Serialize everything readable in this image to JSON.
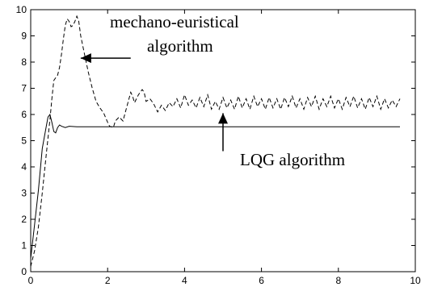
{
  "chart_data": {
    "type": "line",
    "title": "",
    "xlabel": "",
    "ylabel": "",
    "xlim": [
      0,
      10
    ],
    "ylim": [
      0,
      10
    ],
    "xticks": [
      0,
      2,
      4,
      6,
      8,
      10
    ],
    "yticks": [
      0,
      1,
      2,
      3,
      4,
      5,
      6,
      7,
      8,
      9,
      10
    ],
    "grid": false,
    "legend": "none",
    "series": [
      {
        "label_ref": "annotations.0",
        "style": "dashed",
        "color": "#000000",
        "points": [
          [
            0,
            0.2
          ],
          [
            0.1,
            0.8
          ],
          [
            0.2,
            1.7
          ],
          [
            0.3,
            3.0
          ],
          [
            0.4,
            4.4
          ],
          [
            0.5,
            5.8
          ],
          [
            0.55,
            6.6
          ],
          [
            0.6,
            7.3
          ],
          [
            0.65,
            7.4
          ],
          [
            0.7,
            7.5
          ],
          [
            0.75,
            7.8
          ],
          [
            0.8,
            8.3
          ],
          [
            0.85,
            8.9
          ],
          [
            0.9,
            9.4
          ],
          [
            0.95,
            9.65
          ],
          [
            1.0,
            9.55
          ],
          [
            1.05,
            9.35
          ],
          [
            1.1,
            9.4
          ],
          [
            1.15,
            9.55
          ],
          [
            1.2,
            9.75
          ],
          [
            1.25,
            9.55
          ],
          [
            1.3,
            9.0
          ],
          [
            1.4,
            8.3
          ],
          [
            1.5,
            7.6
          ],
          [
            1.6,
            7.0
          ],
          [
            1.7,
            6.5
          ],
          [
            1.8,
            6.25
          ],
          [
            1.9,
            6.05
          ],
          [
            2.0,
            5.7
          ],
          [
            2.05,
            5.55
          ],
          [
            2.15,
            5.5
          ],
          [
            2.2,
            5.75
          ],
          [
            2.3,
            5.9
          ],
          [
            2.4,
            5.75
          ],
          [
            2.5,
            6.3
          ],
          [
            2.6,
            6.85
          ],
          [
            2.65,
            6.7
          ],
          [
            2.7,
            6.45
          ],
          [
            2.8,
            6.75
          ],
          [
            2.9,
            6.95
          ],
          [
            2.95,
            6.85
          ],
          [
            3.0,
            6.5
          ],
          [
            3.1,
            6.6
          ],
          [
            3.2,
            6.4
          ],
          [
            3.3,
            6.1
          ],
          [
            3.4,
            6.35
          ],
          [
            3.5,
            6.15
          ],
          [
            3.6,
            6.45
          ],
          [
            3.7,
            6.3
          ],
          [
            3.8,
            6.6
          ],
          [
            3.9,
            6.25
          ],
          [
            4.0,
            6.75
          ],
          [
            4.1,
            6.35
          ],
          [
            4.2,
            6.55
          ],
          [
            4.3,
            6.25
          ],
          [
            4.4,
            6.65
          ],
          [
            4.5,
            6.3
          ],
          [
            4.6,
            6.75
          ],
          [
            4.7,
            6.2
          ],
          [
            4.8,
            6.5
          ],
          [
            4.9,
            6.2
          ],
          [
            5.0,
            6.65
          ],
          [
            5.1,
            6.25
          ],
          [
            5.2,
            6.55
          ],
          [
            5.3,
            6.2
          ],
          [
            5.4,
            6.7
          ],
          [
            5.5,
            6.25
          ],
          [
            5.6,
            6.6
          ],
          [
            5.7,
            6.2
          ],
          [
            5.8,
            6.7
          ],
          [
            5.9,
            6.3
          ],
          [
            6.0,
            6.6
          ],
          [
            6.1,
            6.2
          ],
          [
            6.2,
            6.65
          ],
          [
            6.3,
            6.25
          ],
          [
            6.4,
            6.6
          ],
          [
            6.5,
            6.2
          ],
          [
            6.6,
            6.65
          ],
          [
            6.7,
            6.3
          ],
          [
            6.8,
            6.7
          ],
          [
            6.9,
            6.25
          ],
          [
            7.0,
            6.6
          ],
          [
            7.1,
            6.2
          ],
          [
            7.2,
            6.65
          ],
          [
            7.3,
            6.3
          ],
          [
            7.4,
            6.7
          ],
          [
            7.5,
            6.2
          ],
          [
            7.6,
            6.6
          ],
          [
            7.7,
            6.3
          ],
          [
            7.8,
            6.7
          ],
          [
            7.9,
            6.25
          ],
          [
            8.0,
            6.6
          ],
          [
            8.1,
            6.2
          ],
          [
            8.2,
            6.65
          ],
          [
            8.3,
            6.3
          ],
          [
            8.4,
            6.7
          ],
          [
            8.5,
            6.25
          ],
          [
            8.6,
            6.6
          ],
          [
            8.7,
            6.2
          ],
          [
            8.8,
            6.65
          ],
          [
            8.9,
            6.3
          ],
          [
            9.0,
            6.7
          ],
          [
            9.1,
            6.2
          ],
          [
            9.2,
            6.6
          ],
          [
            9.3,
            6.25
          ],
          [
            9.4,
            6.55
          ],
          [
            9.5,
            6.3
          ],
          [
            9.6,
            6.6
          ]
        ]
      },
      {
        "label_ref": "annotations.1",
        "style": "solid",
        "color": "#000000",
        "points": [
          [
            0,
            0.5
          ],
          [
            0.1,
            1.8
          ],
          [
            0.2,
            3.1
          ],
          [
            0.3,
            4.7
          ],
          [
            0.4,
            5.5
          ],
          [
            0.45,
            5.9
          ],
          [
            0.5,
            6.0
          ],
          [
            0.55,
            5.7
          ],
          [
            0.6,
            5.35
          ],
          [
            0.65,
            5.3
          ],
          [
            0.7,
            5.5
          ],
          [
            0.75,
            5.6
          ],
          [
            0.8,
            5.55
          ],
          [
            0.9,
            5.5
          ],
          [
            1.0,
            5.55
          ],
          [
            1.2,
            5.53
          ],
          [
            1.5,
            5.53
          ],
          [
            2.0,
            5.53
          ],
          [
            3.0,
            5.53
          ],
          [
            4.0,
            5.53
          ],
          [
            5.0,
            5.53
          ],
          [
            6.0,
            5.53
          ],
          [
            7.0,
            5.53
          ],
          [
            8.0,
            5.53
          ],
          [
            9.0,
            5.53
          ],
          [
            9.6,
            5.53
          ]
        ]
      }
    ],
    "annotations": [
      {
        "lines": [
          "mechano-euristical",
          "algorithm"
        ],
        "arrow_to": [
          1.3,
          8.15
        ],
        "arrow_from": [
          2.6,
          8.15
        ]
      },
      {
        "lines": [
          "LQG algorithm"
        ],
        "arrow_to": [
          5.0,
          6.05
        ],
        "arrow_from": [
          5.0,
          4.6
        ]
      }
    ]
  }
}
